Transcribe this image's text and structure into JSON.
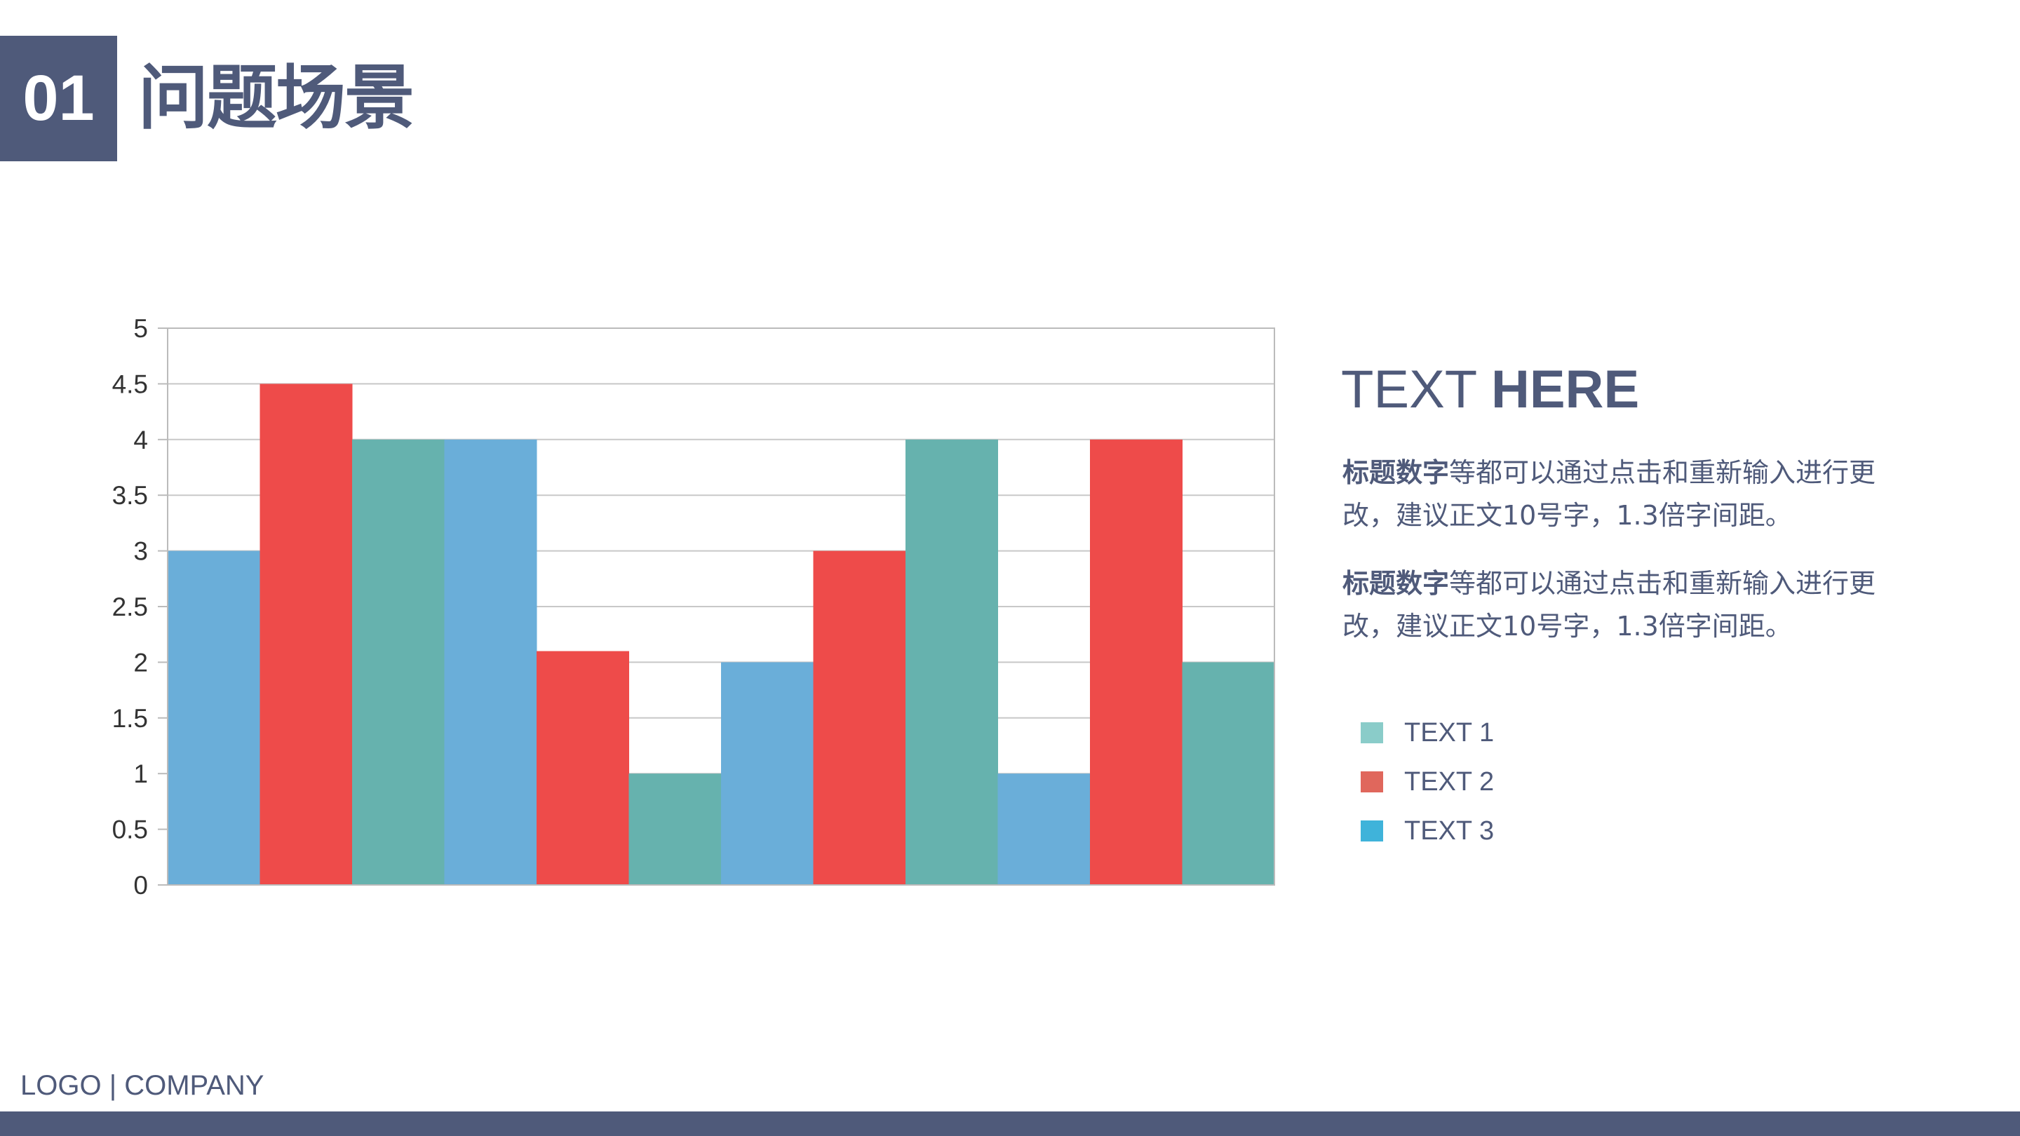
{
  "header": {
    "number": "01",
    "title": "问题场景"
  },
  "side": {
    "heading_light": "TEXT ",
    "heading_bold": "HERE",
    "paragraphs": [
      {
        "bold": "标题数字",
        "text": "等都可以通过点击和重新输入进行更改，建议正文10号字，1.3倍字间距。"
      },
      {
        "bold": "标题数字",
        "text": "等都可以通过点击和重新输入进行更改，建议正文10号字，1.3倍字间距。"
      }
    ]
  },
  "legend": [
    {
      "label": "TEXT 1",
      "color": "#8accc9"
    },
    {
      "label": "TEXT 2",
      "color": "#e0675c"
    },
    {
      "label": "TEXT 3",
      "color": "#3fb3da"
    }
  ],
  "footer": {
    "text": "LOGO | COMPANY"
  },
  "colors": {
    "primary": "#4f5a7a"
  },
  "chart_data": {
    "type": "bar",
    "categories": [
      "",
      "",
      "",
      ""
    ],
    "series": [
      {
        "values": [
          3,
          4,
          2,
          1
        ],
        "color": "#6aaed9"
      },
      {
        "values": [
          4.5,
          2.1,
          3,
          4
        ],
        "color": "#ee4b4a"
      },
      {
        "values": [
          4,
          1,
          4,
          2
        ],
        "color": "#66b2ae"
      }
    ],
    "ylim": [
      0,
      5
    ],
    "yticks": [
      "0",
      "0.5",
      "1",
      "1.5",
      "2",
      "2.5",
      "3",
      "3.5",
      "4",
      "4.5",
      "5"
    ],
    "grid": true
  }
}
